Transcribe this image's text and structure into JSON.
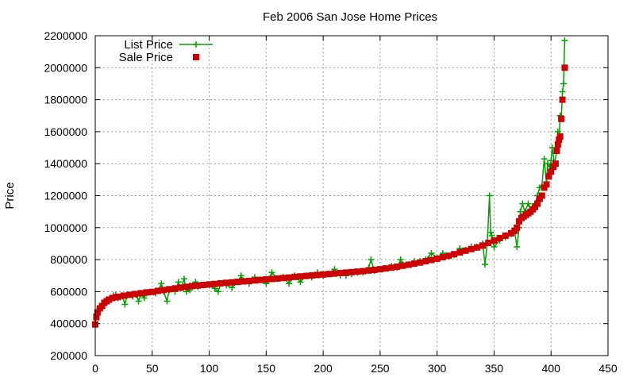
{
  "chart_data": {
    "type": "line",
    "title": "Feb 2006 San Jose Home Prices",
    "xlabel": "",
    "ylabel": "Price",
    "xlim": [
      0,
      450
    ],
    "ylim": [
      200000,
      2200000
    ],
    "xticks": [
      0,
      50,
      100,
      150,
      200,
      250,
      300,
      350,
      400,
      450
    ],
    "yticks": [
      200000,
      400000,
      600000,
      800000,
      1000000,
      1200000,
      1400000,
      1600000,
      1800000,
      2000000,
      2200000
    ],
    "grid": true,
    "legend_position": "top-left",
    "series": [
      {
        "name": "List Price",
        "style": "line+cross",
        "color": "#00a000",
        "points": [
          [
            0,
            400000
          ],
          [
            1,
            460000
          ],
          [
            2,
            480000
          ],
          [
            4,
            500000
          ],
          [
            6,
            510000
          ],
          [
            8,
            520000
          ],
          [
            10,
            545000
          ],
          [
            12,
            550000
          ],
          [
            14,
            560000
          ],
          [
            16,
            575000
          ],
          [
            18,
            580000
          ],
          [
            20,
            560000
          ],
          [
            22,
            565000
          ],
          [
            24,
            570000
          ],
          [
            26,
            520000
          ],
          [
            28,
            575000
          ],
          [
            30,
            580000
          ],
          [
            33,
            570000
          ],
          [
            36,
            580000
          ],
          [
            38,
            540000
          ],
          [
            40,
            585000
          ],
          [
            43,
            560000
          ],
          [
            45,
            590000
          ],
          [
            48,
            595000
          ],
          [
            50,
            600000
          ],
          [
            53,
            590000
          ],
          [
            55,
            605000
          ],
          [
            58,
            650000
          ],
          [
            60,
            600000
          ],
          [
            63,
            540000
          ],
          [
            65,
            610000
          ],
          [
            68,
            620000
          ],
          [
            70,
            600000
          ],
          [
            73,
            660000
          ],
          [
            75,
            620000
          ],
          [
            78,
            680000
          ],
          [
            80,
            600000
          ],
          [
            83,
            610000
          ],
          [
            86,
            640000
          ],
          [
            88,
            660000
          ],
          [
            90,
            630000
          ],
          [
            95,
            640000
          ],
          [
            100,
            640000
          ],
          [
            105,
            620000
          ],
          [
            108,
            600000
          ],
          [
            110,
            650000
          ],
          [
            115,
            640000
          ],
          [
            120,
            625000
          ],
          [
            125,
            660000
          ],
          [
            128,
            700000
          ],
          [
            130,
            670000
          ],
          [
            135,
            650000
          ],
          [
            140,
            690000
          ],
          [
            145,
            675000
          ],
          [
            150,
            650000
          ],
          [
            155,
            720000
          ],
          [
            160,
            680000
          ],
          [
            165,
            690000
          ],
          [
            170,
            650000
          ],
          [
            175,
            700000
          ],
          [
            180,
            660000
          ],
          [
            185,
            700000
          ],
          [
            190,
            690000
          ],
          [
            195,
            720000
          ],
          [
            200,
            700000
          ],
          [
            205,
            710000
          ],
          [
            210,
            740000
          ],
          [
            215,
            700000
          ],
          [
            220,
            700000
          ],
          [
            225,
            710000
          ],
          [
            230,
            720000
          ],
          [
            235,
            720000
          ],
          [
            240,
            750000
          ],
          [
            242,
            800000
          ],
          [
            245,
            730000
          ],
          [
            250,
            740000
          ],
          [
            255,
            745000
          ],
          [
            260,
            760000
          ],
          [
            265,
            750000
          ],
          [
            268,
            800000
          ],
          [
            270,
            770000
          ],
          [
            275,
            770000
          ],
          [
            280,
            790000
          ],
          [
            285,
            790000
          ],
          [
            290,
            800000
          ],
          [
            295,
            840000
          ],
          [
            300,
            810000
          ],
          [
            305,
            840000
          ],
          [
            310,
            820000
          ],
          [
            315,
            830000
          ],
          [
            320,
            870000
          ],
          [
            325,
            860000
          ],
          [
            330,
            880000
          ],
          [
            335,
            880000
          ],
          [
            340,
            900000
          ],
          [
            342,
            770000
          ],
          [
            344,
            900000
          ],
          [
            346,
            1200000
          ],
          [
            347,
            970000
          ],
          [
            348,
            950000
          ],
          [
            350,
            880000
          ],
          [
            355,
            920000
          ],
          [
            360,
            940000
          ],
          [
            365,
            960000
          ],
          [
            368,
            980000
          ],
          [
            370,
            880000
          ],
          [
            372,
            1000000
          ],
          [
            373,
            1100000
          ],
          [
            375,
            1150000
          ],
          [
            377,
            1100000
          ],
          [
            380,
            1150000
          ],
          [
            383,
            1100000
          ],
          [
            386,
            1150000
          ],
          [
            388,
            1200000
          ],
          [
            390,
            1250000
          ],
          [
            392,
            1260000
          ],
          [
            394,
            1430000
          ],
          [
            396,
            1280000
          ],
          [
            397,
            1400000
          ],
          [
            399,
            1380000
          ],
          [
            400,
            1420000
          ],
          [
            401,
            1500000
          ],
          [
            403,
            1400000
          ],
          [
            405,
            1480000
          ],
          [
            406,
            1600000
          ],
          [
            407,
            1540000
          ],
          [
            408,
            1700000
          ],
          [
            409,
            1680000
          ],
          [
            410,
            1850000
          ],
          [
            411,
            1900000
          ],
          [
            412,
            2170000
          ]
        ]
      },
      {
        "name": "Sale Price",
        "style": "square",
        "color": "#cc0000",
        "points": [
          [
            0,
            395000
          ],
          [
            1,
            440000
          ],
          [
            2,
            470000
          ],
          [
            4,
            495000
          ],
          [
            6,
            510000
          ],
          [
            8,
            530000
          ],
          [
            10,
            540000
          ],
          [
            12,
            550000
          ],
          [
            15,
            560000
          ],
          [
            18,
            565000
          ],
          [
            20,
            568000
          ],
          [
            25,
            575000
          ],
          [
            30,
            580000
          ],
          [
            35,
            585000
          ],
          [
            40,
            590000
          ],
          [
            45,
            595000
          ],
          [
            50,
            598000
          ],
          [
            55,
            605000
          ],
          [
            60,
            610000
          ],
          [
            65,
            615000
          ],
          [
            70,
            620000
          ],
          [
            75,
            625000
          ],
          [
            80,
            630000
          ],
          [
            85,
            635000
          ],
          [
            90,
            638000
          ],
          [
            95,
            642000
          ],
          [
            100,
            645000
          ],
          [
            105,
            648000
          ],
          [
            110,
            652000
          ],
          [
            115,
            655000
          ],
          [
            120,
            658000
          ],
          [
            125,
            661000
          ],
          [
            130,
            664000
          ],
          [
            135,
            667000
          ],
          [
            140,
            670000
          ],
          [
            145,
            673000
          ],
          [
            150,
            676000
          ],
          [
            155,
            679000
          ],
          [
            160,
            682000
          ],
          [
            165,
            685000
          ],
          [
            170,
            688000
          ],
          [
            175,
            692000
          ],
          [
            180,
            695000
          ],
          [
            185,
            698000
          ],
          [
            190,
            701000
          ],
          [
            195,
            704000
          ],
          [
            200,
            707000
          ],
          [
            205,
            710000
          ],
          [
            210,
            713000
          ],
          [
            215,
            716000
          ],
          [
            220,
            719000
          ],
          [
            225,
            722000
          ],
          [
            230,
            725000
          ],
          [
            235,
            728000
          ],
          [
            240,
            732000
          ],
          [
            245,
            736000
          ],
          [
            250,
            740000
          ],
          [
            255,
            745000
          ],
          [
            260,
            750000
          ],
          [
            265,
            756000
          ],
          [
            270,
            762000
          ],
          [
            275,
            768000
          ],
          [
            280,
            775000
          ],
          [
            285,
            782000
          ],
          [
            290,
            790000
          ],
          [
            295,
            798000
          ],
          [
            300,
            806000
          ],
          [
            305,
            815000
          ],
          [
            310,
            824000
          ],
          [
            315,
            834000
          ],
          [
            320,
            845000
          ],
          [
            325,
            856000
          ],
          [
            330,
            866000
          ],
          [
            335,
            876000
          ],
          [
            340,
            888000
          ],
          [
            345,
            905000
          ],
          [
            350,
            920000
          ],
          [
            355,
            935000
          ],
          [
            360,
            950000
          ],
          [
            365,
            965000
          ],
          [
            368,
            980000
          ],
          [
            370,
            1000000
          ],
          [
            372,
            1040000
          ],
          [
            374,
            1060000
          ],
          [
            376,
            1070000
          ],
          [
            378,
            1080000
          ],
          [
            380,
            1090000
          ],
          [
            382,
            1100000
          ],
          [
            384,
            1115000
          ],
          [
            386,
            1130000
          ],
          [
            388,
            1150000
          ],
          [
            390,
            1180000
          ],
          [
            392,
            1200000
          ],
          [
            394,
            1250000
          ],
          [
            396,
            1270000
          ],
          [
            398,
            1320000
          ],
          [
            400,
            1350000
          ],
          [
            402,
            1380000
          ],
          [
            404,
            1400000
          ],
          [
            405,
            1480000
          ],
          [
            406,
            1520000
          ],
          [
            407,
            1550000
          ],
          [
            408,
            1570000
          ],
          [
            409,
            1680000
          ],
          [
            410,
            1800000
          ],
          [
            412,
            2000000
          ]
        ]
      }
    ]
  }
}
